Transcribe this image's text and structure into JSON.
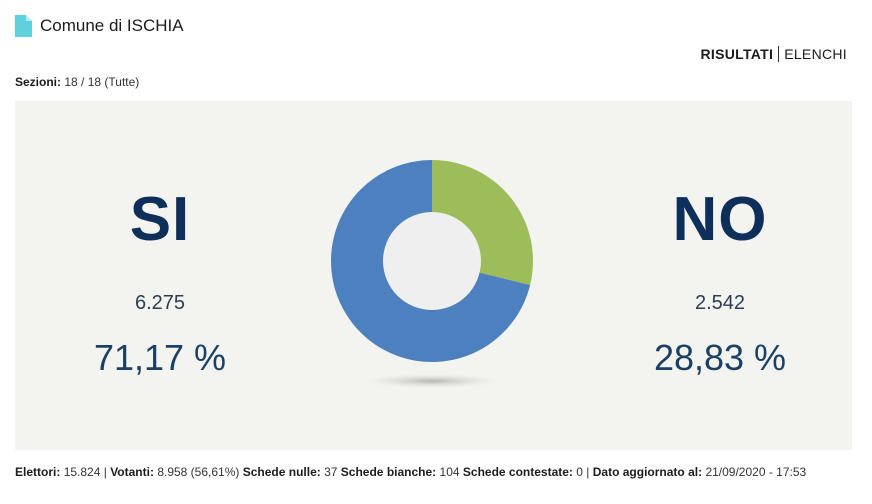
{
  "header": {
    "title": "Comune di ISCHIA",
    "icon": "document-icon"
  },
  "tabs": {
    "active": "RISULTATI",
    "other": "ELENCHI"
  },
  "sezioni": {
    "label": "Sezioni:",
    "value": "18 / 18 (Tutte)"
  },
  "results": {
    "si": {
      "label": "SI",
      "votes": "6.275",
      "percent": "71,17 %"
    },
    "no": {
      "label": "NO",
      "votes": "2.542",
      "percent": "28,83 %"
    }
  },
  "chart_data": {
    "type": "pie",
    "categories": [
      "SI",
      "NO"
    ],
    "values": [
      71.17,
      28.83
    ],
    "colors": [
      "#4c80bf",
      "#9cbd5a"
    ],
    "donut": true
  },
  "footer": {
    "elettori_label": "Elettori:",
    "elettori_value": "15.824 |",
    "votanti_label": "Votanti:",
    "votanti_value": "8.958 (56,61%)",
    "nulle_label": "Schede nulle:",
    "nulle_value": "37",
    "bianche_label": "Schede bianche:",
    "bianche_value": "104",
    "contestate_label": "Schede contestate:",
    "contestate_value": "0 |",
    "aggiornato_label": "Dato aggiornato al:",
    "aggiornato_value": "21/09/2020 - 17:53"
  }
}
